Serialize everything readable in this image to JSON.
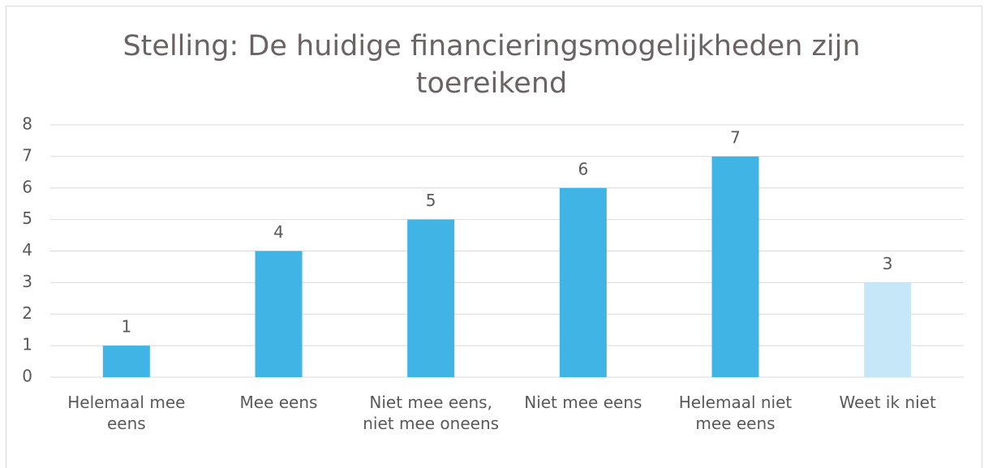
{
  "chart_data": {
    "type": "bar",
    "title": "Stelling: De huidige financieringsmogelijkheden zijn toereikend",
    "categories": [
      "Helemaal mee eens",
      "Mee eens",
      "Niet mee eens, niet mee oneens",
      "Niet mee eens",
      "Helemaal niet mee eens",
      "Weet ik niet"
    ],
    "values": [
      1,
      4,
      5,
      6,
      7,
      3
    ],
    "colors": [
      "#41b4e6",
      "#41b4e6",
      "#41b4e6",
      "#41b4e6",
      "#41b4e6",
      "#c6e7f7"
    ],
    "ylim": [
      0,
      8
    ],
    "yticks": [
      0,
      1,
      2,
      3,
      4,
      5,
      6,
      7,
      8
    ],
    "grid": true
  }
}
